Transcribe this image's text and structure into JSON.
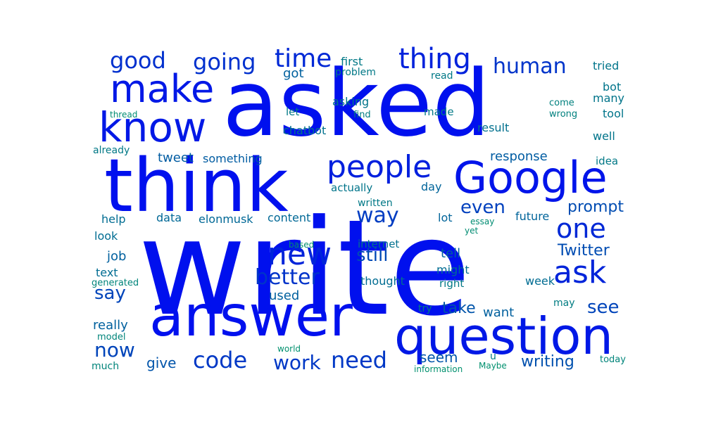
{
  "words": [
    {
      "text": "write",
      "color": "#0010ee"
    },
    {
      "text": "asked",
      "color": "#0010ee"
    },
    {
      "text": "think",
      "color": "#0010ee"
    },
    {
      "text": "answer",
      "color": "#0010ee"
    },
    {
      "text": "question",
      "color": "#0018e6"
    },
    {
      "text": "Google",
      "color": "#0014ea"
    },
    {
      "text": "know",
      "color": "#0018e6"
    },
    {
      "text": "make",
      "color": "#0018e6"
    },
    {
      "text": "people",
      "color": "#0020de"
    },
    {
      "text": "thing",
      "color": "#0022dc"
    },
    {
      "text": "new",
      "color": "#0024da"
    },
    {
      "text": "ask",
      "color": "#0024da"
    },
    {
      "text": "one",
      "color": "#0028d6"
    },
    {
      "text": "time",
      "color": "#0028d6"
    },
    {
      "text": "good",
      "color": "#0030ce"
    },
    {
      "text": "going",
      "color": "#0030ce"
    },
    {
      "text": "human",
      "color": "#0034ca"
    },
    {
      "text": "better",
      "color": "#0034ca"
    },
    {
      "text": "code",
      "color": "#0038c6"
    },
    {
      "text": "need",
      "color": "#0038c6"
    },
    {
      "text": "work",
      "color": "#0038c6"
    },
    {
      "text": "way",
      "color": "#003cc2"
    },
    {
      "text": "even",
      "color": "#0040be"
    },
    {
      "text": "see",
      "color": "#0044ba"
    },
    {
      "text": "say",
      "color": "#0044ba"
    },
    {
      "text": "now",
      "color": "#0044ba"
    },
    {
      "text": "still",
      "color": "#0048b6"
    },
    {
      "text": "prompt",
      "color": "#004cb2"
    },
    {
      "text": "Twitter",
      "color": "#004cb2"
    },
    {
      "text": "writing",
      "color": "#0050ae"
    },
    {
      "text": "take",
      "color": "#0054aa"
    },
    {
      "text": "seem",
      "color": "#0054aa"
    },
    {
      "text": "give",
      "color": "#0054aa"
    },
    {
      "text": "response",
      "color": "#005ca2"
    },
    {
      "text": "tweet",
      "color": "#005ca2"
    },
    {
      "text": "something",
      "color": "#005ca2"
    },
    {
      "text": "got",
      "color": "#00609e"
    },
    {
      "text": "job",
      "color": "#00609e"
    },
    {
      "text": "used",
      "color": "#00609e"
    },
    {
      "text": "want",
      "color": "#00609e"
    },
    {
      "text": "tell",
      "color": "#00609e"
    },
    {
      "text": "really",
      "color": "#00609e"
    },
    {
      "text": "day",
      "color": "#00649a"
    },
    {
      "text": "lot",
      "color": "#00649a"
    },
    {
      "text": "future",
      "color": "#00649a"
    },
    {
      "text": "content",
      "color": "#006896"
    },
    {
      "text": "data",
      "color": "#006896"
    },
    {
      "text": "elonmusk",
      "color": "#006896"
    },
    {
      "text": "help",
      "color": "#006c92"
    },
    {
      "text": "look",
      "color": "#006c92"
    },
    {
      "text": "text",
      "color": "#006c92"
    },
    {
      "text": "might",
      "color": "#006c92"
    },
    {
      "text": "week",
      "color": "#006c92"
    },
    {
      "text": "thought",
      "color": "#006c92"
    },
    {
      "text": "internet",
      "color": "#00708e"
    },
    {
      "text": "chatbot",
      "color": "#00708e"
    },
    {
      "text": "result",
      "color": "#00708e"
    },
    {
      "text": "actually",
      "color": "#00748a"
    },
    {
      "text": "asking",
      "color": "#00748a"
    },
    {
      "text": "well",
      "color": "#00748a"
    },
    {
      "text": "tool",
      "color": "#00748a"
    },
    {
      "text": "many",
      "color": "#00748a"
    },
    {
      "text": "bot",
      "color": "#00748a"
    },
    {
      "text": "tried",
      "color": "#00748a"
    },
    {
      "text": "idea",
      "color": "#007886"
    },
    {
      "text": "first",
      "color": "#007886"
    },
    {
      "text": "problem",
      "color": "#007886"
    },
    {
      "text": "read",
      "color": "#007886"
    },
    {
      "text": "let",
      "color": "#007886"
    },
    {
      "text": "made",
      "color": "#007886"
    },
    {
      "text": "already",
      "color": "#007886"
    },
    {
      "text": "written",
      "color": "#007886"
    },
    {
      "text": "right",
      "color": "#007886"
    },
    {
      "text": "try",
      "color": "#007c82"
    },
    {
      "text": "may",
      "color": "#007c82"
    },
    {
      "text": "u",
      "color": "#007c82"
    },
    {
      "text": "find",
      "color": "#007c82"
    },
    {
      "text": "come",
      "color": "#00807e"
    },
    {
      "text": "wrong",
      "color": "#00807e"
    },
    {
      "text": "generated",
      "color": "#00847a"
    },
    {
      "text": "model",
      "color": "#00847a"
    },
    {
      "text": "much",
      "color": "#00847a"
    },
    {
      "text": "today",
      "color": "#00847a"
    },
    {
      "text": "thread",
      "color": "#008c72"
    },
    {
      "text": "essay",
      "color": "#008c72"
    },
    {
      "text": "yet",
      "color": "#008c72"
    },
    {
      "text": "based",
      "color": "#00906e"
    },
    {
      "text": "world",
      "color": "#00906e"
    },
    {
      "text": "information",
      "color": "#00906e"
    },
    {
      "text": "Maybe",
      "color": "#00906e"
    }
  ]
}
